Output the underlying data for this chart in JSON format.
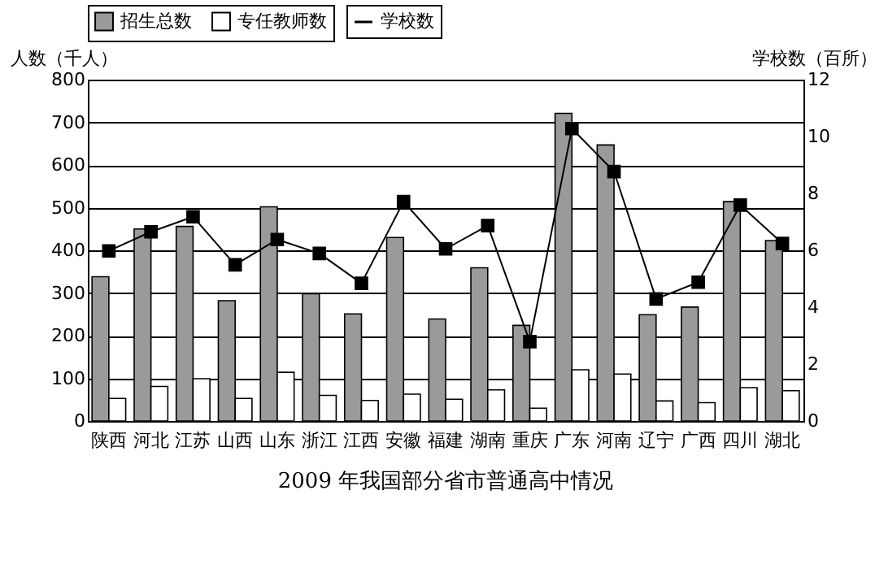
{
  "chart_data": {
    "type": "bar",
    "title": "2009 年我国部分省市普通高中情况",
    "ylabel": "人数（千人）",
    "y2label": "学校数（百所）",
    "categories": [
      "陕西",
      "河北",
      "江苏",
      "山西",
      "山东",
      "浙江",
      "江西",
      "安徽",
      "福建",
      "湖南",
      "重庆",
      "广东",
      "河南",
      "辽宁",
      "广西",
      "四川",
      "湖北"
    ],
    "series": [
      {
        "name": "招生总数",
        "type": "bar",
        "color": "#9a9a9a",
        "values": [
          338,
          450,
          456,
          282,
          502,
          298,
          251,
          430,
          239,
          359,
          224,
          721,
          647,
          249,
          267,
          514,
          423
        ]
      },
      {
        "name": "专任教师数",
        "type": "bar",
        "color": "#ffffff",
        "values": [
          53,
          81,
          99,
          53,
          114,
          60,
          48,
          63,
          51,
          73,
          30,
          120,
          110,
          47,
          43,
          78,
          71
        ]
      },
      {
        "name": "学校数",
        "type": "line",
        "axis": "y2",
        "color": "#000000",
        "marker": "square",
        "values": [
          5.98,
          6.65,
          7.18,
          5.49,
          6.38,
          5.89,
          4.84,
          7.71,
          6.05,
          6.87,
          2.79,
          10.28,
          8.77,
          4.29,
          4.88,
          7.59,
          6.24
        ]
      }
    ],
    "ylim": [
      0,
      800
    ],
    "yticks": [
      0,
      100,
      200,
      300,
      400,
      500,
      600,
      700,
      800
    ],
    "y2lim": [
      0,
      12
    ],
    "y2ticks": [
      0,
      2,
      4,
      6,
      8,
      10,
      12
    ],
    "grid": "y",
    "legend": "top"
  }
}
